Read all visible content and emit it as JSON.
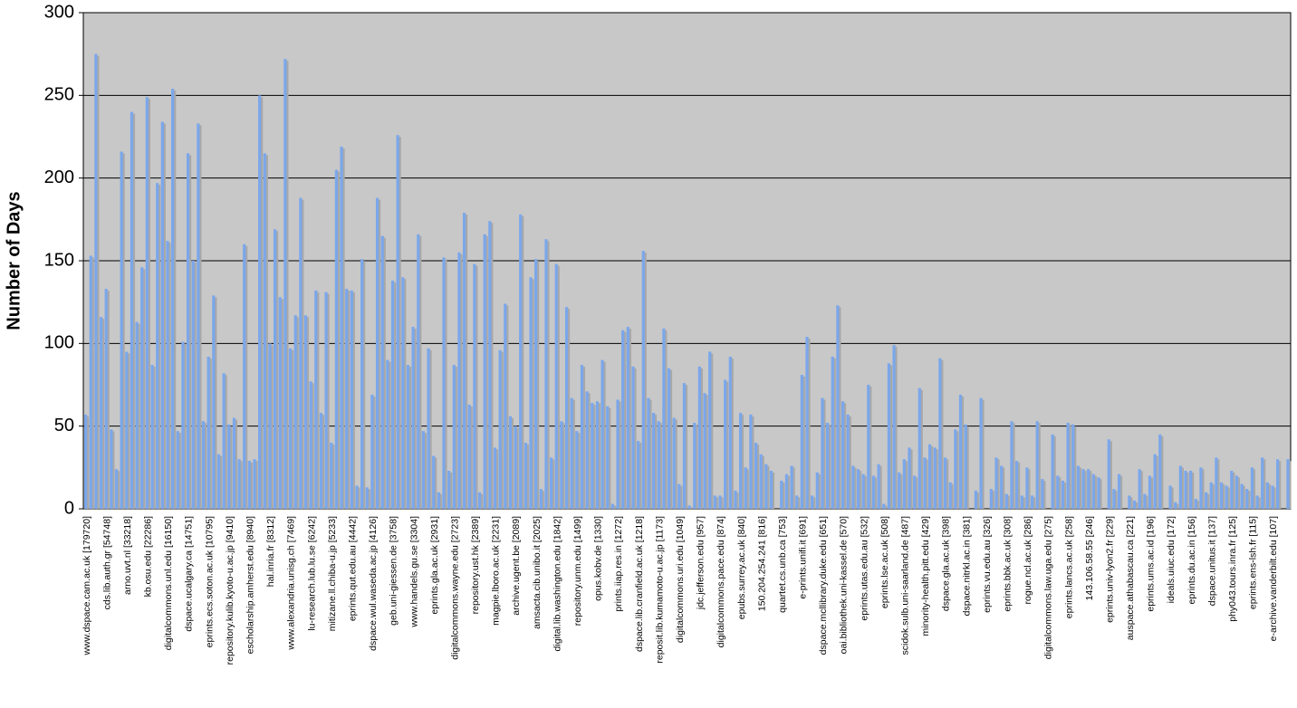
{
  "chart_data": {
    "type": "bar",
    "y_label": "Number of Days",
    "categories": [
      "www.dspace.cam.ac.uk [179720]",
      null,
      null,
      null,
      "cds.lib.auth.gr [54748]",
      null,
      null,
      null,
      "arno.uvt.nl [33218]",
      null,
      null,
      null,
      "kb.osu.edu [22286]",
      null,
      null,
      null,
      "digitalcommons.unl.edu [16150]",
      null,
      null,
      null,
      "dspace.ucalgary.ca [14751]",
      null,
      null,
      null,
      "eprints.ecs.soton.ac.uk [10795]",
      null,
      null,
      null,
      "repository.kulib.kyoto-u.ac.jp [9410]",
      null,
      null,
      null,
      "escholarship.amherst.edu [8940]",
      null,
      null,
      null,
      "hal.inria.fr [8312]",
      null,
      null,
      null,
      "www.alexandria.unisg.ch [7469]",
      null,
      null,
      null,
      "lu-research.lub.lu.se [6242]",
      null,
      null,
      null,
      "mitizane.ll.chiba-u.jp [5233]",
      null,
      null,
      null,
      "eprints.qut.edu.au [4442]",
      null,
      null,
      null,
      "dspace.wul.waseda.ac.jp [4126]",
      null,
      null,
      null,
      "geb.uni-giessen.de [3758]",
      null,
      null,
      null,
      "www.handels.gu.se [3304]",
      null,
      null,
      null,
      "eprints.gla.ac.uk [2931]",
      null,
      null,
      null,
      "digitalcommons.wayne.edu [2723]",
      null,
      null,
      null,
      "repository.ust.hk [2389]",
      null,
      null,
      null,
      "magpie.lboro.ac.uk [2231]",
      null,
      null,
      null,
      "archive.ugent.be [2089]",
      null,
      null,
      null,
      "amsacta.cib.unibo.it [2025]",
      null,
      null,
      null,
      "digital.lib.washington.edu [1842]",
      null,
      null,
      null,
      "repository.unm.edu [1499]",
      null,
      null,
      null,
      "opus.kobv.de [1330]",
      null,
      null,
      null,
      "prints.iiap.res.in [1272]",
      null,
      null,
      null,
      "dspace.lib.cranfield.ac.uk [1218]",
      null,
      null,
      null,
      "reposit.lib.kumamoto-u.ac.jp [1173]",
      null,
      null,
      null,
      "digitalcommons.uri.edu [1049]",
      null,
      null,
      null,
      "jdc.jefferson.edu [957]",
      null,
      null,
      null,
      "digitalcommons.pace.edu [874]",
      null,
      null,
      null,
      "epubs.surrey.ac.uk [840]",
      null,
      null,
      null,
      "150.204.254.241 [816]",
      null,
      null,
      null,
      "quartet.cs.unb.ca [753]",
      null,
      null,
      null,
      "e-prints.unifi.it [691]",
      null,
      null,
      null,
      "dspace.mcllibrary.duke.edu [651]",
      null,
      null,
      null,
      "oai.bibliothek.uni-kassel.de [570]",
      null,
      null,
      null,
      "eprints.utas.edu.au [532]",
      null,
      null,
      null,
      "eprints.lse.ac.uk [508]",
      null,
      null,
      null,
      "scidok.sulb.uni-saarland.de [487]",
      null,
      null,
      null,
      "minority-health.pitt.edu [429]",
      null,
      null,
      null,
      "dspace.gla.ac.uk [398]",
      null,
      null,
      null,
      "dspace.nitrkl.ac.in [381]",
      null,
      null,
      null,
      "eprints.vu.edu.au [326]",
      null,
      null,
      null,
      "eprints.bbk.ac.uk [308]",
      null,
      null,
      null,
      "rogue.ncl.ac.uk [286]",
      null,
      null,
      null,
      "digitalcommons.law.uga.edu [275]",
      null,
      null,
      null,
      "eprints.lancs.ac.uk [258]",
      null,
      null,
      null,
      "143.106.58.55 [246]",
      null,
      null,
      null,
      "eprints.univ-lyon2.fr [229]",
      null,
      null,
      null,
      "auspace.athabascau.ca [221]",
      null,
      null,
      null,
      "eprints.ums.ac.id [196]",
      null,
      null,
      null,
      "ideals.uiuc.edu [172]",
      null,
      null,
      null,
      "eprints.du.ac.in [156]",
      null,
      null,
      null,
      "dspace.unitus.it [137]",
      null,
      null,
      null,
      "phy043.tours.inra.fr [125]",
      null,
      null,
      null,
      "eprints.ens-lsh.fr [115]",
      null,
      null,
      null,
      "e-archive.vanderbilt.edu [107]",
      null,
      null,
      null
    ],
    "values": [
      57,
      153,
      275,
      116,
      133,
      48,
      24,
      216,
      95,
      240,
      113,
      146,
      249,
      87,
      197,
      234,
      162,
      254,
      47,
      101,
      215,
      150,
      233,
      53,
      92,
      129,
      33,
      82,
      51,
      55,
      30,
      160,
      29,
      30,
      250,
      215,
      100,
      169,
      128,
      272,
      97,
      117,
      188,
      117,
      77,
      132,
      58,
      131,
      40,
      205,
      219,
      133,
      132,
      14,
      151,
      13,
      69,
      188,
      165,
      90,
      138,
      226,
      140,
      87,
      110,
      166,
      47,
      97,
      32,
      10,
      152,
      23,
      87,
      155,
      179,
      63,
      148,
      10,
      166,
      174,
      37,
      96,
      124,
      56,
      50,
      178,
      40,
      140,
      151,
      12,
      163,
      31,
      148,
      53,
      122,
      67,
      47,
      87,
      71,
      64,
      65,
      90,
      62,
      3,
      66,
      108,
      110,
      86,
      41,
      156,
      67,
      58,
      53,
      109,
      85,
      55,
      15,
      76,
      2,
      52,
      86,
      70,
      95,
      8,
      8,
      78,
      92,
      11,
      58,
      25,
      57,
      40,
      33,
      27,
      23,
      0,
      17,
      21,
      26,
      8,
      81,
      104,
      8,
      22,
      67,
      52,
      92,
      123,
      65,
      57,
      26,
      24,
      21,
      75,
      20,
      27,
      3,
      88,
      99,
      22,
      30,
      37,
      20,
      73,
      31,
      39,
      37,
      91,
      31,
      16,
      48,
      69,
      51,
      0,
      11,
      67,
      0,
      12,
      31,
      26,
      9,
      53,
      29,
      8,
      25,
      8,
      53,
      18,
      0,
      45,
      20,
      17,
      52,
      51,
      26,
      24,
      24,
      21,
      19,
      0,
      42,
      12,
      21,
      0,
      8,
      5,
      24,
      9,
      20,
      33,
      45,
      0,
      14,
      4,
      26,
      23,
      23,
      6,
      25,
      10,
      16,
      31,
      16,
      14,
      23,
      20,
      15,
      12,
      25,
      8,
      31,
      16,
      14,
      30,
      0,
      30
    ],
    "color": "#7ba7ea",
    "ylim": [
      0,
      300
    ],
    "yticks": [
      0,
      50,
      100,
      150,
      200,
      250,
      300
    ],
    "grid": true
  }
}
